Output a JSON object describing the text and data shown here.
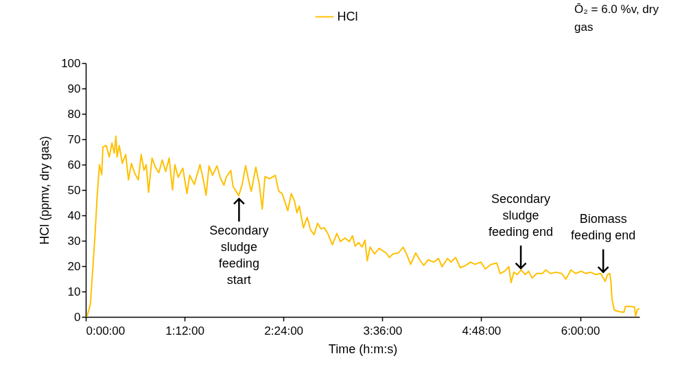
{
  "chart_data": {
    "type": "line",
    "xlabel": "Time (h:m:s)",
    "ylabel": "HCl (ppmv, dry gas)",
    "xlim": [
      0,
      6.72
    ],
    "xticks": [
      {
        "value": 0,
        "label": "0:00:00"
      },
      {
        "value": 1.2,
        "label": "1:12:00"
      },
      {
        "value": 2.4,
        "label": "2:24:00"
      },
      {
        "value": 3.6,
        "label": "3:36:00"
      },
      {
        "value": 4.8,
        "label": "4:48:00"
      },
      {
        "value": 6,
        "label": "6:00:00"
      }
    ],
    "ylim": [
      0,
      100
    ],
    "yticks": [
      0,
      10,
      20,
      30,
      40,
      50,
      60,
      70,
      80,
      90,
      100
    ],
    "grid": false,
    "legend": "top",
    "annotations": [
      {
        "text": "Secondary\nsludge\nfeeding\nstart",
        "x": 1.86,
        "y": 48
      },
      {
        "text": "Secondary\nsludge\nfeeding end",
        "x": 5.28,
        "y": 18.5
      },
      {
        "text": "Biomass\nfeeding end",
        "x": 6.28,
        "y": 17
      },
      "Ō₂ = 6.0 %v, dry\ngas"
    ],
    "series": [
      {
        "name": "HCl",
        "color": "#ffc000",
        "x": [
          0.014,
          0.056,
          0.11,
          0.139,
          0.166,
          0.194,
          0.208,
          0.249,
          0.285,
          0.318,
          0.346,
          0.366,
          0.38,
          0.407,
          0.443,
          0.485,
          0.518,
          0.554,
          0.596,
          0.637,
          0.673,
          0.707,
          0.734,
          0.762,
          0.804,
          0.845,
          0.887,
          0.928,
          0.97,
          1.012,
          1.053,
          1.081,
          1.122,
          1.178,
          1.228,
          1.261,
          1.317,
          1.386,
          1.427,
          1.46,
          1.496,
          1.538,
          1.593,
          1.635,
          1.677,
          1.704,
          1.76,
          1.787,
          1.857,
          1.898,
          1.94,
          1.981,
          2.009,
          2.064,
          2.106,
          2.142,
          2.175,
          2.231,
          2.3,
          2.342,
          2.383,
          2.452,
          2.494,
          2.535,
          2.563,
          2.591,
          2.641,
          2.688,
          2.729,
          2.771,
          2.813,
          2.854,
          2.895,
          2.937,
          2.993,
          3.048,
          3.09,
          3.145,
          3.2,
          3.236,
          3.27,
          3.311,
          3.353,
          3.389,
          3.416,
          3.45,
          3.505,
          3.56,
          3.602,
          3.644,
          3.685,
          3.727,
          3.796,
          3.851,
          3.893,
          3.943,
          4.004,
          4.06,
          4.101,
          4.156,
          4.225,
          4.281,
          4.323,
          4.391,
          4.433,
          4.489,
          4.545,
          4.614,
          4.669,
          4.724,
          4.794,
          4.849,
          4.918,
          4.988,
          5.029,
          5.085,
          5.135,
          5.162,
          5.195,
          5.237,
          5.284,
          5.334,
          5.375,
          5.417,
          5.472,
          5.542,
          5.583,
          5.639,
          5.708,
          5.777,
          5.827,
          5.888,
          5.943,
          6.013,
          6.068,
          6.124,
          6.193,
          6.249,
          6.304,
          6.332,
          6.359,
          6.373,
          6.387,
          6.415,
          6.47,
          6.532,
          6.548,
          6.609,
          6.659,
          6.673,
          6.692,
          6.72
        ],
        "values": [
          0,
          5,
          31,
          48,
          60,
          56,
          67,
          67.5,
          63,
          68.5,
          64.5,
          71.2,
          63,
          67.5,
          60.5,
          64,
          54,
          60.5,
          56.5,
          54,
          64,
          57.7,
          60,
          49.1,
          62.6,
          59,
          56.8,
          61.8,
          57.3,
          62.6,
          50,
          60,
          55,
          58.6,
          48.6,
          55.8,
          52.2,
          60,
          54,
          47.9,
          59.5,
          55.8,
          59.5,
          54.6,
          51.9,
          55,
          57.7,
          51.4,
          47.8,
          52.2,
          59.6,
          53.1,
          49.5,
          59,
          52.2,
          42.5,
          55.3,
          54.4,
          55.8,
          49.5,
          48.6,
          41.8,
          48.6,
          45.5,
          41,
          43.7,
          35.1,
          39.2,
          34.2,
          32.4,
          36.9,
          34.7,
          35.1,
          32.9,
          28.4,
          32.9,
          29.7,
          31.1,
          29.7,
          32,
          27.9,
          29.3,
          27.5,
          30.2,
          22.1,
          27.5,
          24.8,
          27,
          26.1,
          25.2,
          23.4,
          24.8,
          25.2,
          27.5,
          24.8,
          20.7,
          25.2,
          22.1,
          20.3,
          22.5,
          21.6,
          23,
          19.8,
          23,
          21.6,
          23.4,
          19.4,
          20.3,
          21.6,
          20.7,
          21.6,
          18.9,
          20.7,
          21.2,
          17.1,
          18,
          19.8,
          13.5,
          17.6,
          16.7,
          18.5,
          16.7,
          18,
          15.3,
          17.1,
          17.1,
          18.5,
          17.1,
          17.6,
          17.1,
          14.9,
          18.5,
          17.1,
          18,
          17.1,
          17.6,
          16.7,
          17.1,
          14,
          16.7,
          17.1,
          14,
          6.8,
          2.7,
          2.1,
          1.8,
          4.1,
          4.1,
          3.9,
          0.3,
          2.7,
          3.4
        ]
      }
    ]
  }
}
